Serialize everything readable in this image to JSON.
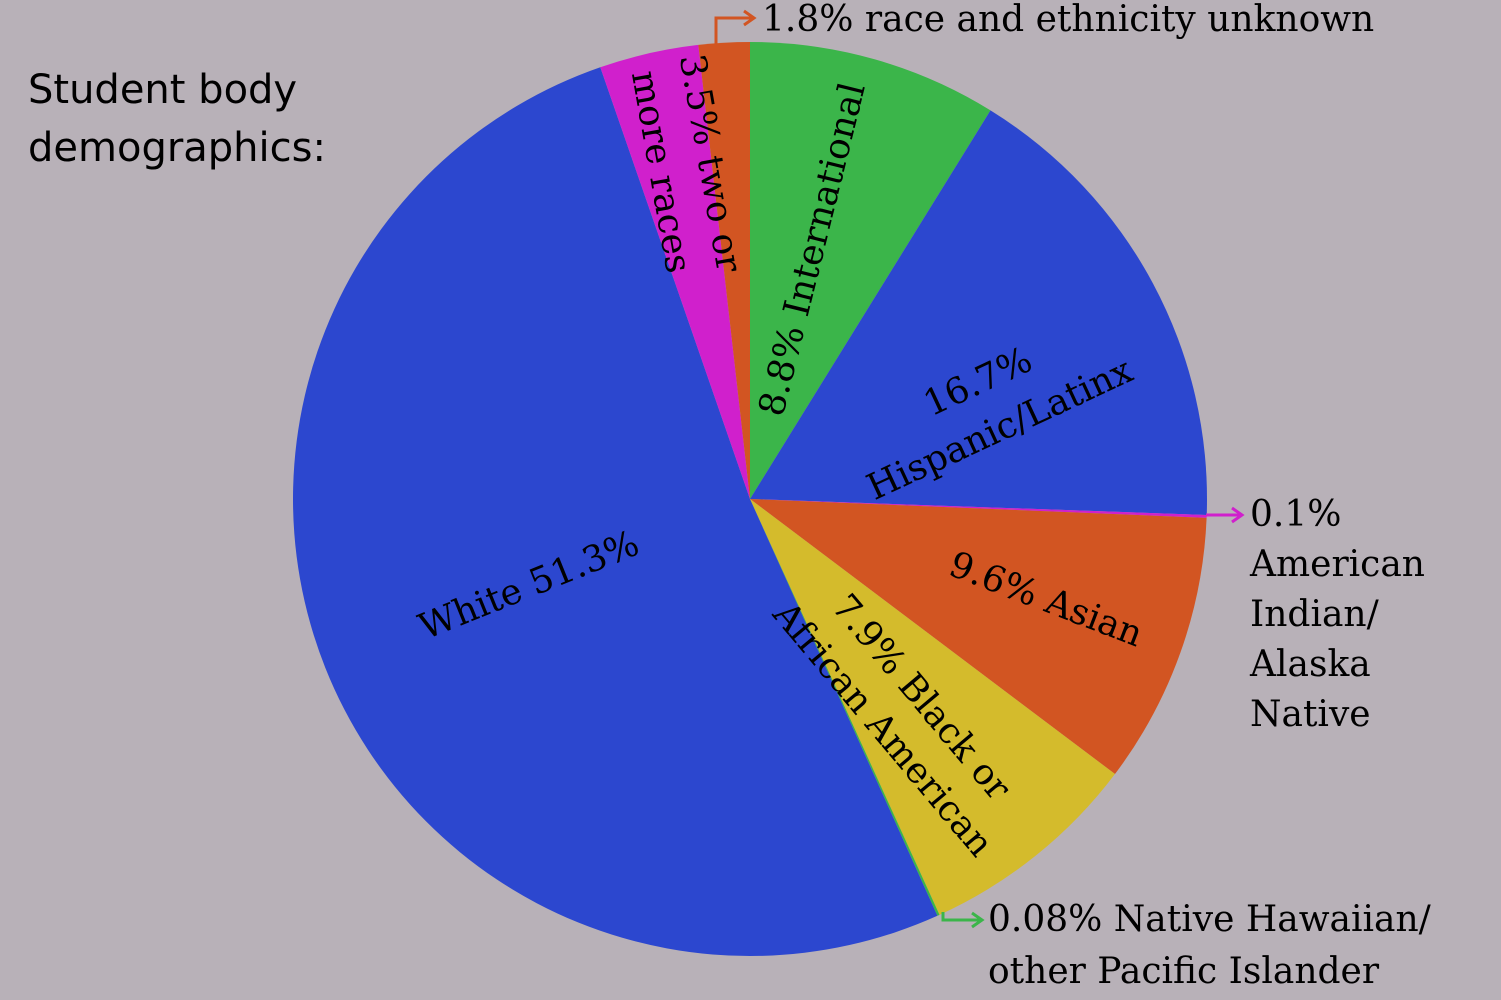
{
  "chart_data": {
    "type": "pie",
    "title": [
      "Student body",
      "demographics:"
    ],
    "categories": [
      "International",
      "Hispanic/Latinx",
      "American Indian/Alaska Native",
      "Asian",
      "Black or African American",
      "Native Hawaiian/other Pacific Islander",
      "White",
      "two or more races",
      "race and ethnicity unknown"
    ],
    "values": [
      8.8,
      16.7,
      0.1,
      9.6,
      7.9,
      0.08,
      51.3,
      3.5,
      1.8
    ],
    "labels": [
      [
        "8.8% International"
      ],
      [
        "16.7%",
        "Hispanic/Latinx"
      ],
      [
        "0.1%",
        "American",
        "Indian/",
        "Alaska",
        "Native"
      ],
      [
        "9.6% Asian"
      ],
      [
        "7.9% Black or",
        "African American"
      ],
      [
        "0.08% Native Hawaiian/",
        "other Pacific Islander"
      ],
      [
        "White 51.3%"
      ],
      [
        "3.5% two or",
        "more races"
      ],
      [
        "1.8% race and ethnicity unknown"
      ]
    ],
    "colors": [
      "#3bb54a",
      "#2c47cf",
      "#d020cc",
      "#d25522",
      "#d4bb2c",
      "#3bb54a",
      "#2c47cf",
      "#d020cc",
      "#d25522"
    ]
  }
}
